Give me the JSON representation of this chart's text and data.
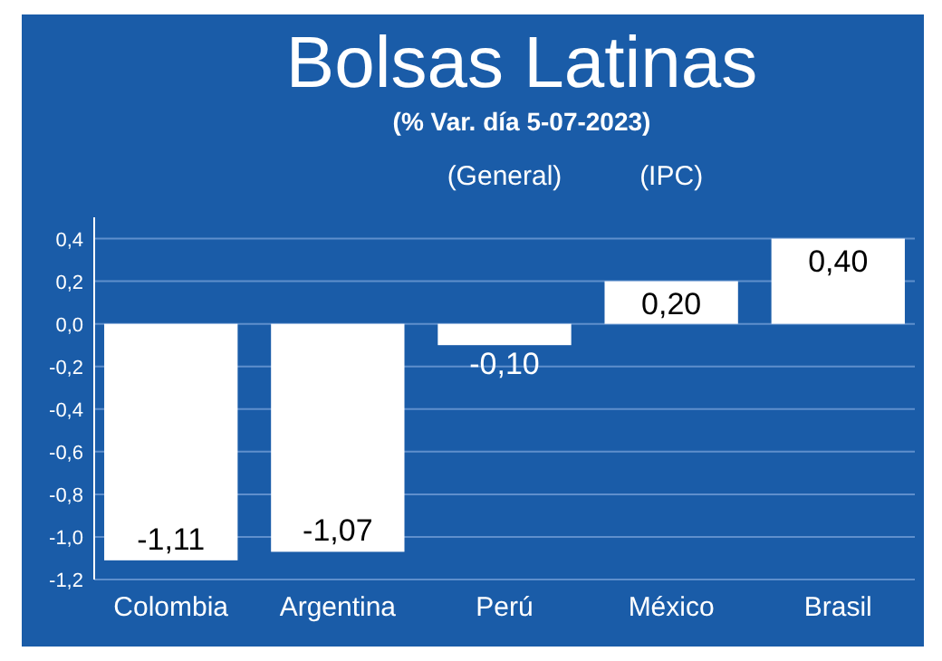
{
  "chart_data": {
    "type": "bar",
    "title": "Bolsas Latinas",
    "subtitle": "(% Var. día 5-07-2023)",
    "categories": [
      "Colombia",
      "Argentina",
      "Perú",
      "México",
      "Brasil"
    ],
    "values": [
      -1.11,
      -1.07,
      -0.1,
      0.2,
      0.4
    ],
    "value_labels": [
      "-1,11",
      "-1,07",
      "-0,10",
      "0,20",
      "0,40"
    ],
    "color": "#ffffff",
    "ylim": [
      -1.2,
      0.5
    ],
    "yticks": [
      {
        "value": 0.4,
        "label": "0,4"
      },
      {
        "value": 0.2,
        "label": "0,2"
      },
      {
        "value": 0,
        "label": "0,0"
      },
      {
        "value": -0.2,
        "label": "-0,2"
      },
      {
        "value": -0.4,
        "label": "-0,4"
      },
      {
        "value": -0.6,
        "label": "-0,6"
      },
      {
        "value": -0.8,
        "label": "-0,8"
      },
      {
        "value": -1.0,
        "label": "-1,0"
      },
      {
        "value": -1.2,
        "label": "-1,2"
      }
    ],
    "grid": "y",
    "annotations": [
      "(General)",
      "(IPC)"
    ]
  }
}
